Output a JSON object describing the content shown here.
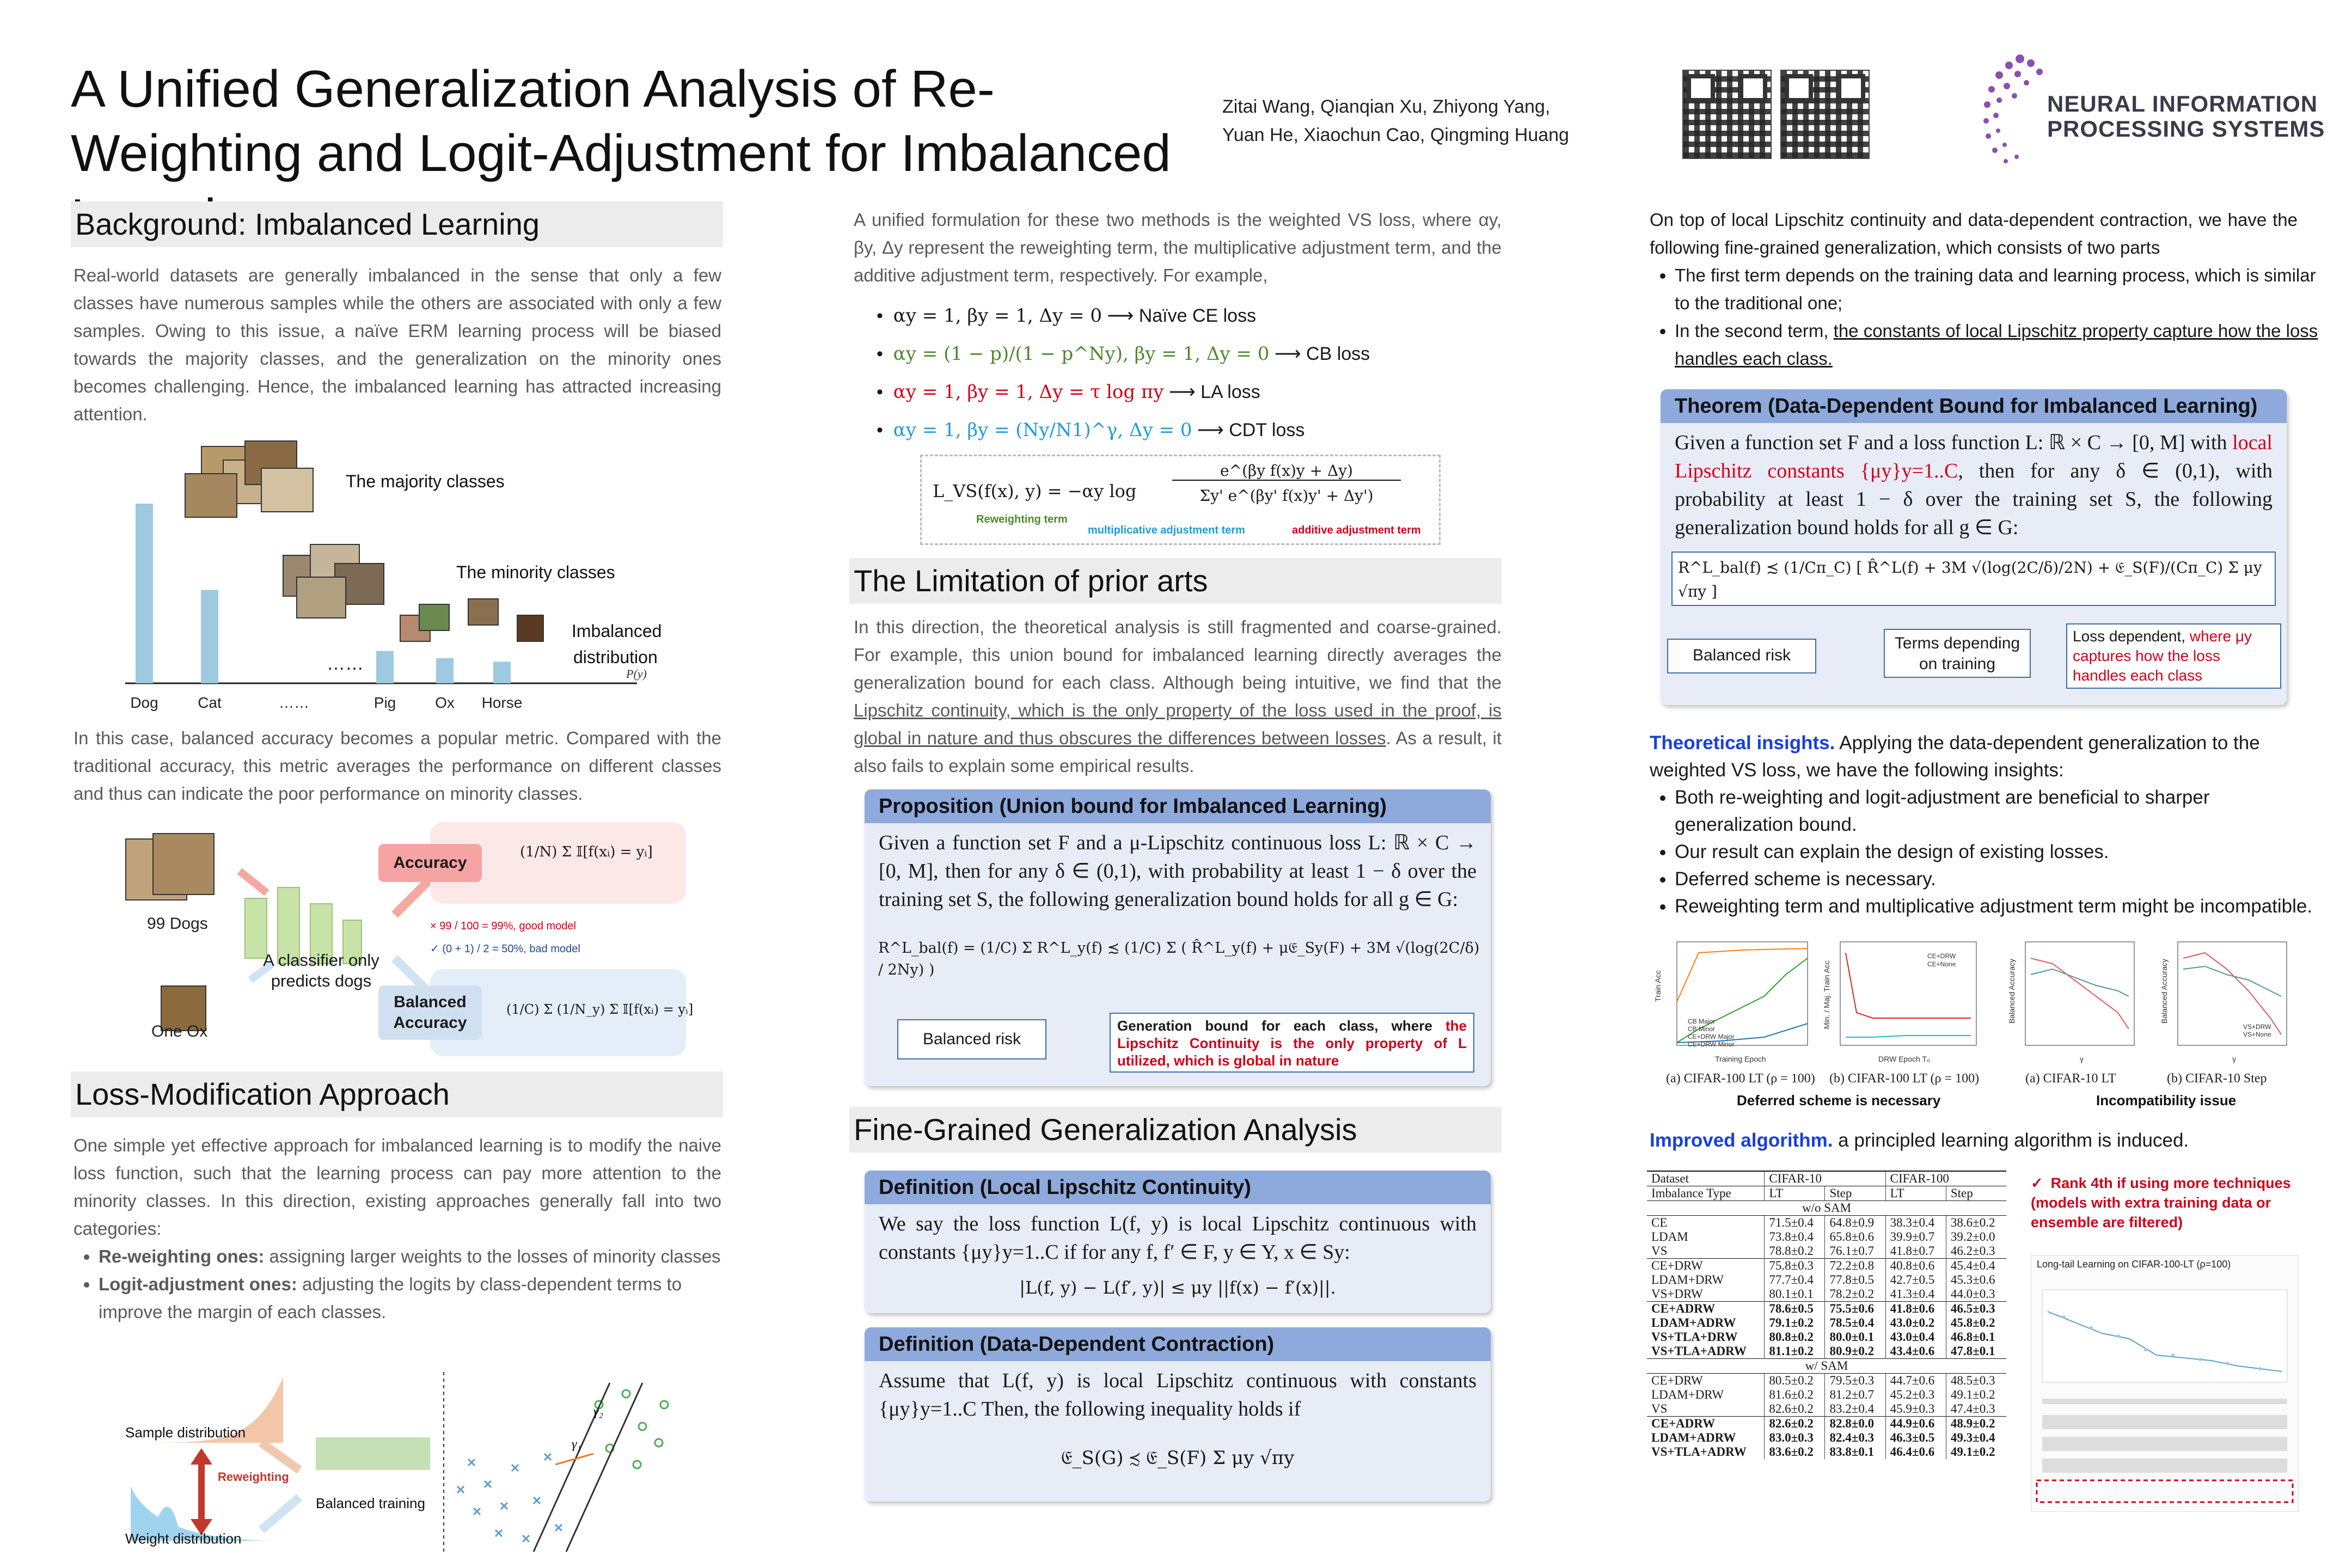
{
  "header": {
    "title": "A Unified Generalization Analysis of Re-Weighting and Logit-Adjustment for Imbalanced Learning",
    "authors_line1": "Zitai Wang, Qianqian Xu, Zhiyong Yang,",
    "authors_line2": "Yuan He, Xiaochun Cao, Qingming Huang",
    "logo_line1": "NEURAL INFORMATION",
    "logo_line2": "PROCESSING SYSTEMS"
  },
  "background": {
    "heading": "Background: Imbalanced Learning",
    "para1": "Real-world datasets are generally imbalanced in the sense that only a few classes have numerous samples while the others are associated with only a few samples. Owing to this issue, a naïve ERM learning process will be biased towards the majority classes, and the generalization on the minority ones becomes challenging. Hence, the imbalanced learning has attracted increasing attention.",
    "fig": {
      "majority": "The majority classes",
      "minority": "The minority classes",
      "imbalanced": "Imbalanced",
      "distribution": "distribution",
      "py": "P(y)",
      "dots": "……",
      "categories": [
        "Dog",
        "Cat",
        "……",
        "Pig",
        "Ox",
        "Horse"
      ]
    },
    "para2": "In this case, balanced accuracy becomes a popular metric. Compared with the traditional accuracy, this metric averages the performance on different classes and thus can indicate the poor performance on minority classes.",
    "fig2": {
      "dogs": "99 Dogs",
      "ox": "One Ox",
      "classifier1": "A classifier only",
      "classifier2": "predicts dogs",
      "accuracy": "Accuracy",
      "balanced1": "Balanced",
      "balanced2": "Accuracy",
      "good": "99 / 100 = 99%, good model",
      "bad": "(0 + 1) / 2 = 50%, bad model"
    }
  },
  "loss_mod": {
    "heading": "Loss-Modification Approach",
    "para": "One simple yet effective approach for imbalanced learning is to modify the naive loss function, such that the learning process can pay more attention to the minority classes. In this direction, existing approaches generally fall into two categories:",
    "b1_strong": "Re-weighting ones:",
    "b1_text": " assigning larger weights to the losses of minority classes",
    "b2_strong": "Logit-adjustment ones:",
    "b2_text": " adjusting the logits by class-dependent terms to improve the margin of each classes.",
    "fig": {
      "sample": "Sample distribution",
      "weight": "Weight distribution",
      "reweighting": "Reweighting",
      "balanced_training": "Balanced training",
      "gamma1": "γ₁",
      "gamma2": "γ₂"
    }
  },
  "unified": {
    "para": "A unified formulation for these two methods is the weighted VS loss, where αy, βy, Δy represent the reweighting term, the multiplicative adjustment term, and the additive adjustment term, respectively. For example,",
    "items": [
      {
        "math": "αy = 1, βy = 1, Δy = 0",
        "loss": "Naïve CE loss"
      },
      {
        "math": "αy = (1 − p)/(1 − p^Ny), βy = 1, Δy = 0",
        "loss": "CB loss"
      },
      {
        "math": "αy = 1, βy = 1, Δy = τ log πy",
        "loss": "LA loss"
      },
      {
        "math": "αy = 1, βy = (Ny/N1)^γ, Δy = 0",
        "loss": "CDT loss"
      }
    ],
    "arrow": "⟶",
    "formula_lhs": "L_VS(f(x), y) = −αy log",
    "formula_num": "e^(βy f(x)y + Δy)",
    "formula_den": "Σy' e^(βy' f(x)y' + Δy')",
    "lbl_reweight": "Reweighting term",
    "lbl_mult": "multiplicative adjustment term",
    "lbl_add": "additive adjustment term"
  },
  "limitation": {
    "heading": "The Limitation of prior arts",
    "para_a": "In this direction, the theoretical analysis is still fragmented and coarse-grained. For example, this union bound for imbalanced learning directly averages the generalization bound for each class. Although being intuitive, we find that the ",
    "para_u": "Lipschitz continuity, which is the only property of the loss used in the proof, is global in nature and thus obscures the differences between losses",
    "para_b": ". As a result, it also fails to explain some empirical results.",
    "prop_head": "Proposition (Union bound for Imbalanced Learning)",
    "prop_text": "Given a function set F and a μ-Lipschitz continuous loss L: ℝ × C → [0, M], then for any δ ∈ (0,1), with probability at least 1 − δ over the training set S, the following generalization bound holds for all g ∈ G:",
    "prop_formula": "R^L_bal(f) = (1/C) Σ R^L_y(f) ≾ (1/C) Σ ( R̂^L_y(f) + μ𝔈_Sy(F) + 3M √(log(2C/δ) / 2Ny) )",
    "balanced_risk": "Balanced risk",
    "gen_a": "Generation bound for each class, where ",
    "gen_red": "the Lipschitz Continuity is the only property of L utilized, which is global in nature"
  },
  "finegrained": {
    "heading": "Fine-Grained Generalization Analysis",
    "def1_head": "Definition (Local Lipschitz Continuity)",
    "def1_text": "We say the loss function L(f, y) is local Lipschitz continuous with constants {μy}y=1..C if for any f, f′ ∈ F, y ∈ Y, x ∈ Sy:",
    "def1_formula": "|L(f, y) − L(f′, y)| ≤ μy ||f(x) − f′(x)||.",
    "def2_head": "Definition (Data-Dependent Contraction)",
    "def2_text": "Assume that L(f, y) is local Lipschitz continuous with constants {μy}y=1..C Then, the following inequality holds if",
    "def2_formula": "𝔈_S(G) ≾ 𝔈_S(F) Σ μy √πy"
  },
  "right": {
    "intro": "On top of local Lipschitz continuity and data-dependent contraction, we have the following fine-grained generalization, which consists of two parts",
    "b1": "The first term depends on the training data and learning process, which is similar to the traditional one;",
    "b2_a": "In the second term, ",
    "b2_u": "the constants of local Lipschitz property capture how the loss handles each class.",
    "thm_head": "Theorem (Data-Dependent Bound for Imbalanced Learning)",
    "thm_a": "Given a function set F and a loss function L: ℝ × C → [0, M] with ",
    "thm_red": "local Lipschitz constants {μy}y=1..C",
    "thm_b": ", then for any δ ∈ (0,1), with probability at least 1 − δ over the training set S, the following generalization bound holds for all g ∈ G:",
    "thm_formula": "R^L_bal(f) ≾ (1/Cπ_C) [ R̂^L(f) + 3M √(log(2C/δ)/2N) + 𝔈_S(F)/(Cπ_C) Σ μy √πy ]",
    "balanced_risk": "Balanced risk",
    "terms1": "Terms depending",
    "terms2": "on training",
    "loss_dep_a": "Loss dependent, ",
    "loss_dep_red": "where μy captures how the loss handles each class",
    "insights_head": "Theoretical insights.",
    "insights_text": " Applying the data-dependent generalization to the weighted VS loss, we have the following insights:",
    "insights": [
      "Both re-weighting and logit-adjustment are beneficial to sharper generalization bound.",
      "Our result can explain the design of existing losses.",
      "Deferred scheme is necessary.",
      "Reweighting term and multiplicative adjustment term might be incompatible."
    ],
    "plots": {
      "p1_ylabel": "Train Acc",
      "p1_xlabel": "Training Epoch",
      "p1_legend": [
        "CB Major",
        "CB Minor",
        "CE+DRW Major",
        "CE+DRW Minor"
      ],
      "p1_caption": "(a) CIFAR-100 LT (ρ = 100)",
      "p2_ylabel": "Min. / Maj. Train Acc",
      "p2_xlabel": "DRW Epoch T₀",
      "p2_legend": [
        "CE+DRW",
        "CE+None"
      ],
      "p2_caption": "(b) CIFAR-100 LT (ρ = 100)",
      "p3_ylabel": "Balanced Accuracy",
      "p3_xlabel": "γ",
      "p3_legend": [
        "VS+DRW",
        "VS+None"
      ],
      "p3_caption": "(a) CIFAR-10 LT",
      "p4_caption": "(b) CIFAR-10 Step",
      "cap_left": "Deferred scheme is necessary",
      "cap_right": "Incompatibility issue"
    },
    "improved_head": "Improved algorithm.",
    "improved_text": " a principled learning algorithm is induced.",
    "rank": "Rank 4th if using more techniques (models with extra training data or ensemble are filtered)",
    "leaderboard_title": "Long-tail Learning on CIFAR-100-LT (ρ=100)"
  },
  "results_table": {
    "headers": [
      "Dataset",
      "CIFAR-10",
      "CIFAR-100"
    ],
    "subheaders": [
      "Imbalance Type",
      "LT",
      "Step",
      "LT",
      "Step"
    ],
    "group_wo": "w/o SAM",
    "group_w": "w/ SAM",
    "blocks": [
      [
        [
          "CE",
          "71.5±0.4",
          "64.8±0.9",
          "38.3±0.4",
          "38.6±0.2"
        ],
        [
          "LDAM",
          "73.8±0.4",
          "65.8±0.6",
          "39.9±0.7",
          "39.2±0.0"
        ],
        [
          "VS",
          "78.8±0.2",
          "76.1±0.7",
          "41.8±0.7",
          "46.2±0.3"
        ]
      ],
      [
        [
          "CE+DRW",
          "75.8±0.3",
          "72.2±0.8",
          "40.8±0.6",
          "45.4±0.4"
        ],
        [
          "LDAM+DRW",
          "77.7±0.4",
          "77.8±0.5",
          "42.7±0.5",
          "45.3±0.6"
        ],
        [
          "VS+DRW",
          "80.1±0.1",
          "78.2±0.2",
          "41.3±0.4",
          "44.0±0.3"
        ]
      ],
      [
        [
          "CE+ADRW",
          "78.6±0.5",
          "75.5±0.6",
          "41.8±0.6",
          "46.5±0.3"
        ],
        [
          "LDAM+ADRW",
          "79.1±0.2",
          "78.5±0.4",
          "43.0±0.2",
          "45.8±0.2"
        ],
        [
          "VS+TLA+DRW",
          "80.8±0.2",
          "80.0±0.1",
          "43.0±0.4",
          "46.8±0.1"
        ],
        [
          "VS+TLA+ADRW",
          "81.1±0.2",
          "80.9±0.2",
          "43.4±0.6",
          "47.8±0.1"
        ]
      ],
      [
        [
          "CE+DRW",
          "80.5±0.2",
          "79.5±0.3",
          "44.7±0.6",
          "48.5±0.3"
        ],
        [
          "LDAM+DRW",
          "81.6±0.2",
          "81.2±0.7",
          "45.2±0.3",
          "49.1±0.2"
        ],
        [
          "VS",
          "82.6±0.2",
          "83.2±0.4",
          "45.9±0.3",
          "47.4±0.3"
        ]
      ],
      [
        [
          "CE+ADRW",
          "82.6±0.2",
          "82.8±0.0",
          "44.9±0.6",
          "48.9±0.2"
        ],
        [
          "LDAM+ADRW",
          "83.0±0.3",
          "82.4±0.3",
          "46.3±0.5",
          "49.3±0.4"
        ],
        [
          "VS+TLA+ADRW",
          "83.6±0.2",
          "83.8±0.1",
          "46.4±0.6",
          "49.1±0.2"
        ]
      ]
    ]
  },
  "colors": {
    "section_bg": "#ececec",
    "box_head": "#8ea9db",
    "box_bg": "#e8ecf6",
    "accent_red": "#d0021b",
    "accent_blue": "#1f9bd7",
    "insight_blue": "#1a3fd8",
    "bar_blue": "#9ecae1"
  },
  "chart_data": [
    {
      "type": "bar",
      "categories": [
        "Dog",
        "Cat",
        "……",
        "Pig",
        "Ox",
        "Horse"
      ],
      "values": [
        100,
        52,
        0,
        18,
        14,
        12
      ],
      "ylabel": "P(y)"
    }
  ]
}
